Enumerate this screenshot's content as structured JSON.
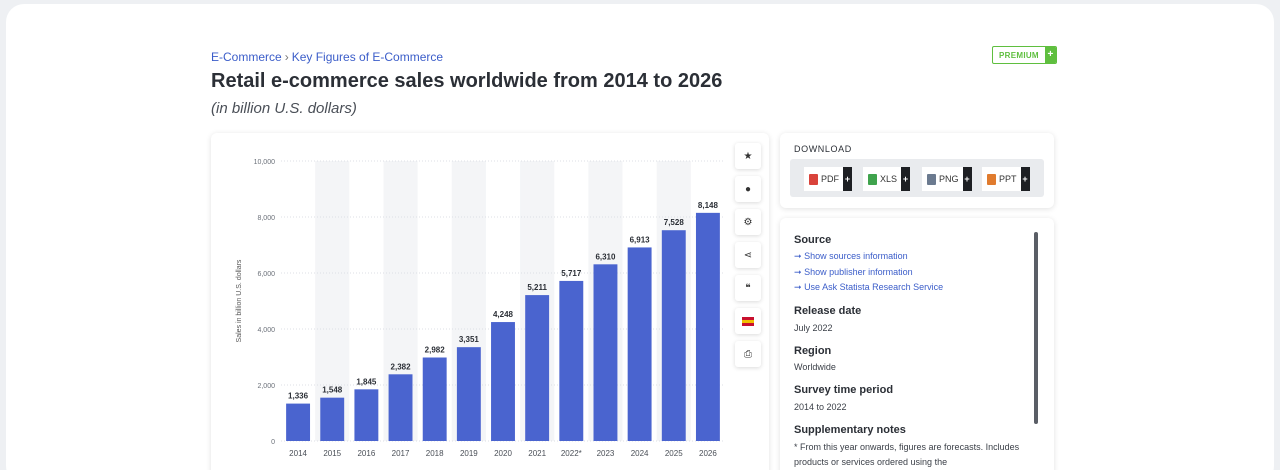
{
  "breadcrumb": {
    "items": [
      "E-Commerce",
      "Key Figures of E-Commerce"
    ],
    "separator": "›"
  },
  "badge": {
    "label": "PREMIUM",
    "plus": "+"
  },
  "page": {
    "title": "Retail e-commerce sales worldwide from 2014 to 2026",
    "subtitle": "(in billion U.S. dollars)"
  },
  "chart_data": {
    "type": "bar",
    "categories": [
      "2014",
      "2015",
      "2016",
      "2017",
      "2018",
      "2019",
      "2020",
      "2021",
      "2022*",
      "2023",
      "2024",
      "2025",
      "2026"
    ],
    "values": [
      1336,
      1548,
      1845,
      2382,
      2982,
      3351,
      4248,
      5211,
      5717,
      6310,
      6913,
      7528,
      8148
    ],
    "value_labels": [
      "1,336",
      "1,548",
      "1,845",
      "2,382",
      "2,982",
      "3,351",
      "4,248",
      "5,211",
      "5,717",
      "6,310",
      "6,913",
      "7,528",
      "8,148"
    ],
    "yticks": [
      0,
      2000,
      4000,
      6000,
      8000,
      10000
    ],
    "ytick_labels": [
      "0",
      "2,000",
      "4,000",
      "6,000",
      "8,000",
      "10,000"
    ],
    "ylim": [
      0,
      10000
    ],
    "ylabel": "Sales in billion U.S. dollars",
    "xlabel": "",
    "grid": true,
    "bar_color": "#4a64cf"
  },
  "toolbar": {
    "icons": [
      "star-icon",
      "bell-icon",
      "gear-icon",
      "share-icon",
      "quote-icon",
      "flag-icon",
      "print-icon"
    ],
    "glyphs": [
      "★",
      "●",
      "⚙",
      "⋖",
      "❝",
      "",
      "⎙"
    ]
  },
  "download": {
    "title": "DOWNLOAD",
    "buttons": [
      {
        "label": "PDF",
        "plus": "+",
        "icon_color": "#d9433b"
      },
      {
        "label": "XLS",
        "plus": "+",
        "icon_color": "#3fa34d"
      },
      {
        "label": "PNG",
        "plus": "+",
        "icon_color": "#6b7a8f"
      },
      {
        "label": "PPT",
        "plus": "+",
        "icon_color": "#e07b2e"
      }
    ]
  },
  "info": {
    "source_heading": "Source",
    "links": [
      "Show sources information",
      "Show publisher information",
      "Use Ask Statista Research Service"
    ],
    "link_arrow": "➞",
    "release_heading": "Release date",
    "release_value": "July 2022",
    "region_heading": "Region",
    "region_value": "Worldwide",
    "survey_heading": "Survey time period",
    "survey_value": "2014 to 2022",
    "notes_heading": "Supplementary notes",
    "notes_text": "* From this year onwards, figures are forecasts. Includes products or services ordered using the"
  }
}
